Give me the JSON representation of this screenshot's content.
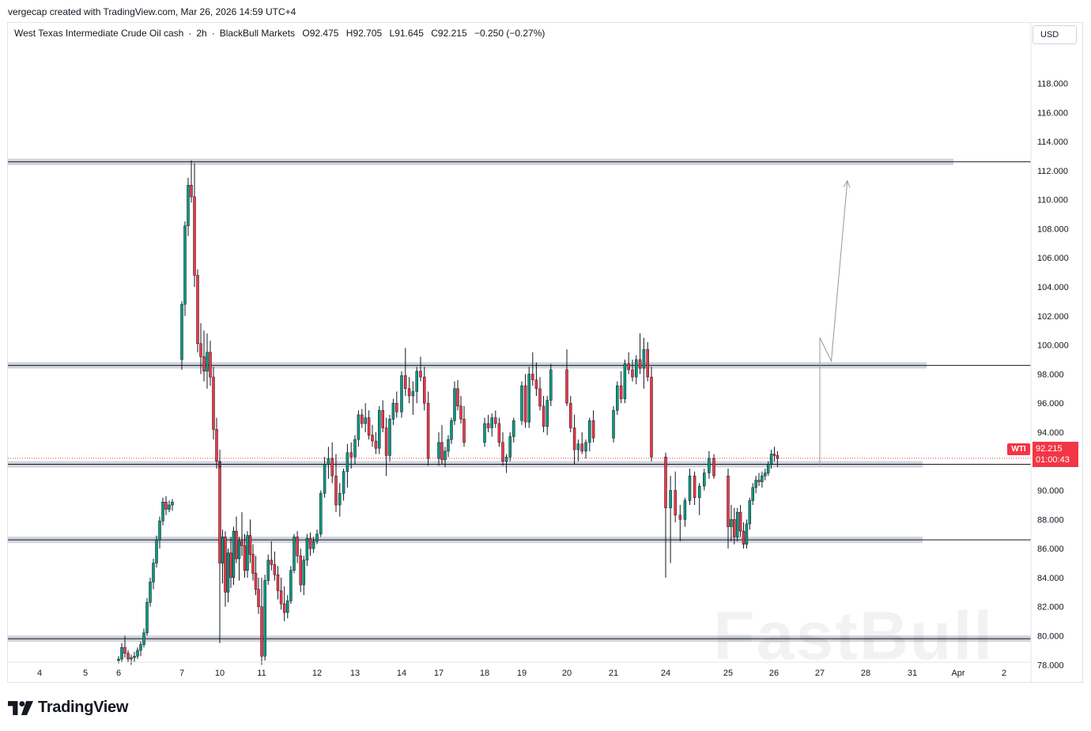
{
  "header": {
    "credit": "vergecap created with TradingView.com, Mar 26, 2026 14:59 UTC+4"
  },
  "symbol_bar": {
    "name": "West Texas Intermediate Crude Oil cash",
    "interval": "2h",
    "broker": "BlackBull Markets",
    "open": "O92.475",
    "high": "H92.705",
    "low": "L91.645",
    "close": "C92.215",
    "change": "−0.250 (−0.27%)"
  },
  "price_scale": {
    "currency": "USD",
    "ticks": [
      "118.000",
      "116.000",
      "114.000",
      "112.000",
      "110.000",
      "108.000",
      "106.000",
      "104.000",
      "102.000",
      "100.000",
      "98.000",
      "96.000",
      "94.000",
      "92.000",
      "90.000",
      "88.000",
      "86.000",
      "84.000",
      "82.000",
      "80.000",
      "78.000"
    ]
  },
  "last_price": {
    "symbol_tag": "WTI",
    "value": "92.215",
    "countdown": "01:00:43",
    "color": "#f23645"
  },
  "time_scale": {
    "labels": [
      "4",
      "5",
      "6",
      "7",
      "10",
      "11",
      "12",
      "13",
      "14",
      "17",
      "18",
      "19",
      "20",
      "21",
      "24",
      "25",
      "26",
      "27",
      "28",
      "31",
      "Apr",
      "2"
    ]
  },
  "footer": {
    "brand": "TradingView"
  },
  "watermark": {
    "text": "FastBull"
  },
  "colors": {
    "up": "#089981",
    "down": "#f23645",
    "zone": "#d1d4dc",
    "line": "#131722",
    "projection": "#9598a1"
  },
  "chart_data": {
    "type": "candlestick",
    "ylim": [
      77.8,
      120.2
    ],
    "y_ticks": [
      78,
      80,
      82,
      84,
      86,
      88,
      90,
      92,
      94,
      96,
      98,
      100,
      102,
      104,
      106,
      108,
      110,
      112,
      114,
      116,
      118
    ],
    "x_labels": [
      "4",
      "5",
      "6",
      "7",
      "10",
      "11",
      "12",
      "13",
      "14",
      "17",
      "18",
      "19",
      "20",
      "21",
      "24",
      "25",
      "26",
      "27",
      "28",
      "31",
      "Apr",
      "2"
    ],
    "horizontal_zones": [
      {
        "price": 112.6,
        "extends": "right"
      },
      {
        "price": 98.6,
        "extends": "right"
      },
      {
        "price": 91.8,
        "extends": "right"
      },
      {
        "price": 86.6,
        "extends": "right"
      },
      {
        "price": 79.8,
        "extends": "right"
      }
    ],
    "last_price_line": 92.215,
    "projection_path": [
      {
        "x_slot": 27.0,
        "price": 91.7
      },
      {
        "x_slot": 27.0,
        "price": 100.5
      },
      {
        "x_slot": 27.25,
        "price": 98.9
      },
      {
        "x_slot": 27.6,
        "price": 111.3
      }
    ],
    "candles": [
      [
        6,
        0,
        78.3,
        78.6,
        78.1,
        78.4
      ],
      [
        6,
        1,
        78.4,
        79.5,
        78.2,
        79.2
      ],
      [
        6,
        2,
        79.2,
        80.0,
        78.5,
        78.8
      ],
      [
        6,
        3,
        78.8,
        79.0,
        78.2,
        78.4
      ],
      [
        6,
        4,
        78.4,
        78.7,
        78.0,
        78.5
      ],
      [
        6,
        5,
        78.5,
        78.9,
        78.2,
        78.6
      ],
      [
        6,
        6,
        78.6,
        79.2,
        78.4,
        79.0
      ],
      [
        6,
        7,
        79.0,
        79.6,
        78.6,
        79.4
      ],
      [
        6,
        8,
        79.4,
        80.5,
        79.2,
        80.2
      ],
      [
        6,
        9,
        80.2,
        82.6,
        80.0,
        82.3
      ],
      [
        6,
        10,
        82.3,
        84.0,
        82.0,
        83.7
      ],
      [
        6,
        11,
        83.7,
        85.3,
        83.2,
        85.0
      ],
      [
        6,
        12,
        85.0,
        86.9,
        84.7,
        86.6
      ],
      [
        6,
        13,
        86.6,
        88.2,
        86.0,
        87.9
      ],
      [
        6,
        14,
        87.9,
        89.5,
        87.6,
        89.2
      ],
      [
        6,
        15,
        89.2,
        89.6,
        88.3,
        88.7
      ],
      [
        6,
        16,
        88.7,
        89.3,
        88.5,
        89.0
      ],
      [
        6,
        17,
        89.0,
        89.4,
        88.6,
        89.2
      ],
      [
        7,
        0,
        99.0,
        103.0,
        98.3,
        102.8
      ],
      [
        7,
        1,
        102.8,
        108.5,
        102.0,
        108.2
      ],
      [
        7,
        2,
        108.2,
        111.5,
        107.5,
        111.0
      ],
      [
        7,
        3,
        111.0,
        112.7,
        109.8,
        110.2
      ],
      [
        7,
        4,
        110.2,
        112.5,
        104.0,
        104.8
      ],
      [
        7,
        5,
        104.8,
        105.2,
        99.5,
        100.1
      ],
      [
        7,
        6,
        100.1,
        101.5,
        98.0,
        99.2
      ],
      [
        7,
        7,
        99.2,
        101.0,
        97.5,
        98.2
      ],
      [
        7,
        8,
        98.2,
        100.8,
        97.0,
        99.5
      ],
      [
        7,
        9,
        99.5,
        100.3,
        97.2,
        97.8
      ],
      [
        7,
        10,
        97.8,
        98.5,
        93.5,
        94.2
      ],
      [
        7,
        11,
        94.2,
        95.0,
        91.5,
        92.0
      ],
      [
        7,
        12,
        92.0,
        92.8,
        91.2,
        91.6
      ],
      [
        10,
        0,
        91.6,
        92.1,
        79.5,
        85.0
      ],
      [
        10,
        1,
        85.0,
        87.3,
        83.6,
        86.8
      ],
      [
        10,
        2,
        86.8,
        87.2,
        82.0,
        83.0
      ],
      [
        10,
        3,
        83.0,
        86.0,
        82.3,
        85.7
      ],
      [
        10,
        4,
        85.7,
        86.8,
        83.3,
        84.0
      ],
      [
        10,
        5,
        84.0,
        87.5,
        83.5,
        87.2
      ],
      [
        10,
        6,
        87.2,
        88.2,
        85.0,
        85.3
      ],
      [
        10,
        7,
        85.3,
        86.8,
        83.8,
        86.5
      ],
      [
        10,
        8,
        86.5,
        88.5,
        85.5,
        86.2
      ],
      [
        10,
        9,
        86.2,
        87.0,
        84.0,
        84.5
      ],
      [
        10,
        10,
        84.5,
        87.2,
        84.0,
        86.9
      ],
      [
        10,
        11,
        86.9,
        88.0,
        85.0,
        85.6
      ],
      [
        10,
        12,
        85.6,
        86.3,
        83.8,
        84.3
      ],
      [
        10,
        13,
        84.3,
        85.5,
        82.8,
        83.2
      ],
      [
        10,
        14,
        83.2,
        84.0,
        81.5,
        82.0
      ],
      [
        11,
        0,
        82.0,
        84.0,
        78.0,
        78.6
      ],
      [
        11,
        1,
        78.6,
        84.2,
        78.3,
        83.8
      ],
      [
        11,
        2,
        83.8,
        85.6,
        83.5,
        85.2
      ],
      [
        11,
        3,
        85.2,
        86.5,
        84.5,
        84.9
      ],
      [
        11,
        4,
        84.9,
        85.8,
        83.8,
        84.2
      ],
      [
        11,
        5,
        84.2,
        84.8,
        82.5,
        83.1
      ],
      [
        11,
        6,
        83.1,
        84.0,
        81.8,
        82.2
      ],
      [
        11,
        7,
        82.2,
        83.4,
        81.0,
        81.6
      ],
      [
        11,
        8,
        81.6,
        82.8,
        81.2,
        82.4
      ],
      [
        11,
        9,
        82.4,
        84.8,
        82.2,
        84.5
      ],
      [
        11,
        10,
        84.5,
        87.0,
        84.3,
        86.8
      ],
      [
        11,
        11,
        86.8,
        87.2,
        85.0,
        85.5
      ],
      [
        11,
        12,
        85.5,
        86.0,
        83.0,
        83.5
      ],
      [
        11,
        13,
        83.5,
        85.5,
        82.8,
        85.2
      ],
      [
        11,
        14,
        85.2,
        87.0,
        84.8,
        86.7
      ],
      [
        11,
        15,
        86.7,
        87.1,
        85.5,
        86.0
      ],
      [
        11,
        16,
        86.0,
        86.8,
        85.7,
        86.5
      ],
      [
        12,
        0,
        86.5,
        87.3,
        86.3,
        87.0
      ],
      [
        12,
        1,
        87.0,
        90.0,
        86.8,
        89.8
      ],
      [
        12,
        2,
        89.8,
        92.3,
        89.5,
        91.8
      ],
      [
        12,
        3,
        91.8,
        93.0,
        90.8,
        92.2
      ],
      [
        12,
        4,
        92.2,
        93.3,
        90.5,
        91.0
      ],
      [
        12,
        5,
        91.0,
        92.5,
        88.5,
        89.0
      ],
      [
        12,
        6,
        89.0,
        90.5,
        88.2,
        89.8
      ],
      [
        12,
        7,
        89.8,
        91.5,
        89.3,
        91.3
      ],
      [
        12,
        8,
        91.3,
        93.2,
        90.2,
        92.6
      ],
      [
        12,
        9,
        92.6,
        93.3,
        91.5,
        92.3
      ],
      [
        13,
        0,
        92.3,
        93.8,
        91.8,
        93.5
      ],
      [
        13,
        1,
        93.5,
        95.5,
        93.0,
        95.2
      ],
      [
        13,
        2,
        95.2,
        95.6,
        94.3,
        94.6
      ],
      [
        13,
        3,
        94.6,
        96.0,
        94.0,
        95.0
      ],
      [
        13,
        4,
        95.0,
        95.5,
        93.5,
        93.8
      ],
      [
        13,
        5,
        93.8,
        94.5,
        93.0,
        93.4
      ],
      [
        13,
        6,
        93.4,
        94.0,
        92.5,
        92.9
      ],
      [
        13,
        7,
        92.9,
        95.8,
        92.5,
        95.5
      ],
      [
        13,
        8,
        95.5,
        96.2,
        94.0,
        94.3
      ],
      [
        13,
        9,
        94.3,
        95.0,
        91.0,
        92.4
      ],
      [
        13,
        10,
        92.4,
        95.2,
        92.0,
        94.9
      ],
      [
        13,
        11,
        94.9,
        96.3,
        94.5,
        96.0
      ],
      [
        13,
        12,
        96.0,
        96.8,
        95.0,
        95.4
      ],
      [
        14,
        0,
        95.4,
        98.2,
        95.0,
        97.9
      ],
      [
        14,
        1,
        97.9,
        99.8,
        96.5,
        97.0
      ],
      [
        14,
        2,
        97.0,
        97.8,
        96.0,
        96.5
      ],
      [
        14,
        3,
        96.5,
        97.5,
        95.2,
        96.8
      ],
      [
        14,
        4,
        96.8,
        98.5,
        96.0,
        98.2
      ],
      [
        14,
        5,
        98.2,
        99.2,
        97.5,
        97.8
      ],
      [
        14,
        6,
        97.8,
        98.5,
        95.5,
        96.0
      ],
      [
        14,
        7,
        96.0,
        96.8,
        91.7,
        92.2
      ],
      [
        17,
        0,
        92.2,
        94.0,
        91.7,
        93.3
      ],
      [
        17,
        1,
        93.3,
        94.5,
        91.8,
        92.1
      ],
      [
        17,
        2,
        92.1,
        93.0,
        91.6,
        92.7
      ],
      [
        17,
        3,
        92.7,
        93.8,
        92.3,
        93.5
      ],
      [
        17,
        4,
        93.5,
        95.0,
        93.2,
        94.8
      ],
      [
        17,
        5,
        94.8,
        97.5,
        94.5,
        97.0
      ],
      [
        17,
        6,
        97.0,
        97.6,
        95.5,
        95.8
      ],
      [
        17,
        7,
        95.8,
        96.5,
        94.6,
        94.9
      ],
      [
        17,
        8,
        94.9,
        95.8,
        93.0,
        93.3
      ],
      [
        18,
        0,
        93.3,
        95.0,
        93.0,
        94.6
      ],
      [
        18,
        1,
        94.6,
        95.2,
        94.0,
        94.3
      ],
      [
        18,
        2,
        94.3,
        95.3,
        93.7,
        95.0
      ],
      [
        18,
        3,
        95.0,
        95.5,
        94.3,
        94.6
      ],
      [
        18,
        4,
        94.6,
        95.0,
        93.0,
        93.3
      ],
      [
        18,
        5,
        93.3,
        94.0,
        91.7,
        92.0
      ],
      [
        18,
        6,
        92.0,
        92.5,
        91.2,
        92.3
      ],
      [
        18,
        7,
        92.3,
        94.0,
        92.0,
        93.7
      ],
      [
        18,
        8,
        93.7,
        95.0,
        93.3,
        94.8
      ],
      [
        19,
        0,
        94.8,
        97.5,
        94.5,
        97.2
      ],
      [
        19,
        1,
        97.2,
        98.0,
        94.3,
        94.7
      ],
      [
        19,
        2,
        94.7,
        98.5,
        94.3,
        98.0
      ],
      [
        19,
        3,
        98.0,
        99.5,
        97.2,
        97.6
      ],
      [
        19,
        4,
        97.6,
        98.8,
        96.5,
        97.0
      ],
      [
        19,
        5,
        97.0,
        97.8,
        95.5,
        95.8
      ],
      [
        19,
        6,
        95.8,
        96.5,
        94.0,
        94.4
      ],
      [
        19,
        7,
        94.4,
        96.5,
        93.8,
        96.2
      ],
      [
        19,
        8,
        96.2,
        98.7,
        95.8,
        98.3
      ],
      [
        20,
        0,
        98.3,
        99.7,
        95.8,
        96.0
      ],
      [
        20,
        1,
        96.0,
        96.5,
        94.0,
        94.3
      ],
      [
        20,
        2,
        94.3,
        95.2,
        91.8,
        92.8
      ],
      [
        20,
        3,
        92.8,
        93.5,
        92.0,
        93.2
      ],
      [
        20,
        4,
        93.2,
        94.0,
        92.5,
        92.7
      ],
      [
        20,
        5,
        92.7,
        93.5,
        92.2,
        93.3
      ],
      [
        20,
        6,
        93.3,
        95.0,
        92.7,
        94.8
      ],
      [
        20,
        7,
        94.8,
        95.5,
        93.3,
        93.6
      ],
      [
        21,
        0,
        93.6,
        95.8,
        93.3,
        95.5
      ],
      [
        21,
        1,
        95.5,
        97.5,
        95.2,
        97.2
      ],
      [
        21,
        2,
        97.2,
        98.2,
        96.0,
        96.3
      ],
      [
        21,
        3,
        96.3,
        99.0,
        96.0,
        98.7
      ],
      [
        21,
        4,
        98.7,
        99.5,
        98.0,
        98.3
      ],
      [
        21,
        5,
        98.3,
        99.0,
        97.5,
        97.8
      ],
      [
        21,
        6,
        97.8,
        99.3,
        97.3,
        99.0
      ],
      [
        21,
        7,
        99.0,
        100.8,
        98.0,
        98.4
      ],
      [
        21,
        8,
        98.4,
        100.5,
        97.0,
        99.7
      ],
      [
        21,
        9,
        99.7,
        100.2,
        97.5,
        97.8
      ],
      [
        21,
        10,
        97.8,
        98.5,
        92.0,
        92.3
      ],
      [
        24,
        0,
        92.3,
        92.6,
        84.0,
        88.8
      ],
      [
        24,
        1,
        88.8,
        91.0,
        85.0,
        90.0
      ],
      [
        24,
        2,
        90.0,
        91.3,
        87.8,
        88.3
      ],
      [
        24,
        3,
        88.3,
        89.0,
        86.5,
        88.0
      ],
      [
        24,
        4,
        88.0,
        89.5,
        87.5,
        89.3
      ],
      [
        24,
        5,
        89.3,
        91.5,
        89.0,
        91.0
      ],
      [
        24,
        6,
        91.0,
        91.3,
        89.0,
        89.5
      ],
      [
        24,
        7,
        89.5,
        90.5,
        88.3,
        90.3
      ],
      [
        24,
        8,
        90.3,
        91.5,
        90.0,
        91.2
      ],
      [
        24,
        9,
        91.2,
        92.7,
        90.8,
        92.2
      ],
      [
        24,
        10,
        92.2,
        92.5,
        90.8,
        91.0
      ],
      [
        25,
        0,
        91.0,
        91.5,
        86.0,
        87.5
      ],
      [
        25,
        1,
        87.5,
        89.0,
        86.5,
        88.0
      ],
      [
        25,
        2,
        88.0,
        88.8,
        86.3,
        86.8
      ],
      [
        25,
        3,
        86.8,
        88.8,
        86.5,
        88.5
      ],
      [
        25,
        4,
        88.5,
        89.0,
        86.8,
        87.2
      ],
      [
        25,
        5,
        87.2,
        87.8,
        86.0,
        86.3
      ],
      [
        25,
        6,
        86.3,
        88.0,
        86.0,
        87.7
      ],
      [
        25,
        7,
        87.7,
        89.5,
        87.3,
        89.3
      ],
      [
        25,
        8,
        89.3,
        90.5,
        89.0,
        90.2
      ],
      [
        25,
        9,
        90.2,
        91.0,
        89.8,
        90.7
      ],
      [
        25,
        10,
        90.7,
        91.2,
        90.3,
        90.6
      ],
      [
        25,
        11,
        90.6,
        91.3,
        90.2,
        91.0
      ],
      [
        25,
        12,
        91.0,
        91.5,
        90.7,
        91.2
      ],
      [
        25,
        13,
        91.2,
        92.0,
        91.0,
        91.8
      ],
      [
        25,
        14,
        91.8,
        92.8,
        91.5,
        92.5
      ],
      [
        25,
        15,
        92.5,
        93.0,
        92.0,
        92.4
      ],
      [
        25,
        16,
        92.4,
        92.7,
        91.6,
        92.2
      ]
    ]
  }
}
